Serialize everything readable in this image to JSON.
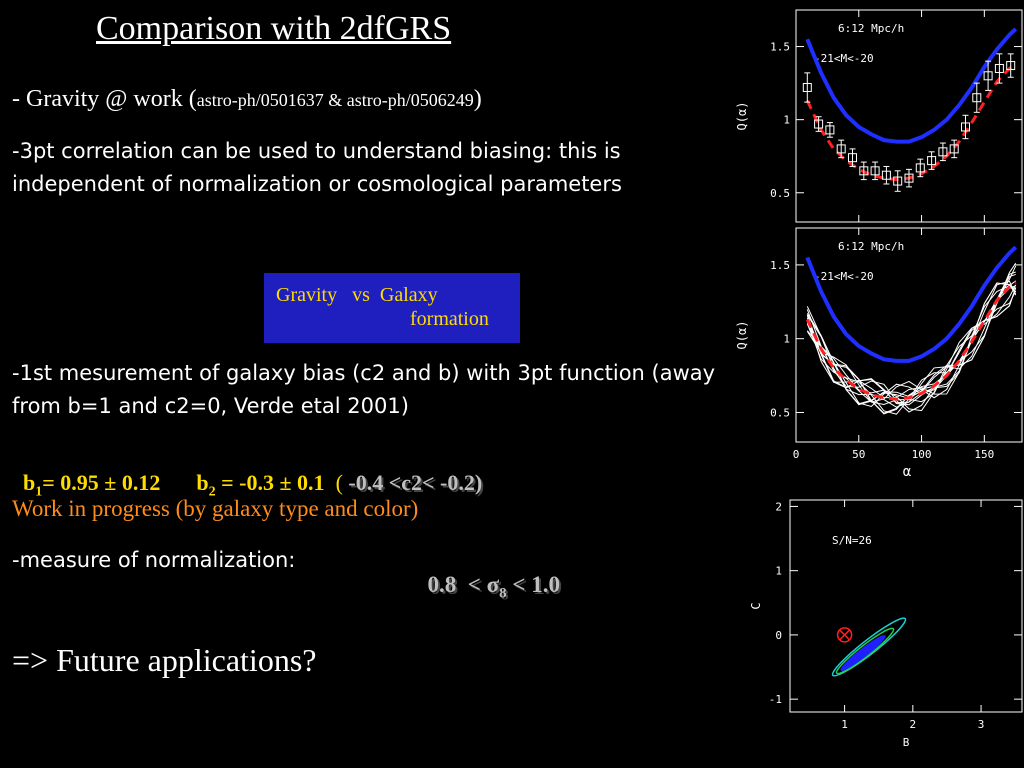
{
  "title": "Comparison with 2dfGRS",
  "gravity": {
    "prefix": "- Gravity @ work (",
    "refs": "astro-ph/0501637 & astro-ph/0506249",
    "suffix": ")"
  },
  "threept_text": "-3pt correlation can be used to understand biasing: this is independent of normalization or cosmological parameters",
  "box": {
    "line1": "Gravity   vs  Galaxy",
    "line2": "formation"
  },
  "bias_text": "-1st mesurement of galaxy bias (c2 and b) with 3pt function (away from b=1 and c2=0, Verde etal 2001)",
  "b_values": {
    "b1_label": "b",
    "b1_sub": "1",
    "b1_value": "= 0.95 ± 0.12",
    "b2_label": "b",
    "b2_sub": "2",
    "b2_value": " = -0.3 ± 0.1",
    "paren_open": "  ( ",
    "c2_range": "-0.4 <c2< -0.2)"
  },
  "wip_text": "Work  in progress (by galaxy type and color)",
  "norm_text": "-measure of normalization:",
  "sigma": {
    "left": "0.8  < σ",
    "sub": "8",
    "right": " < 1.0"
  },
  "future_text": "=> Future applications?",
  "plots": {
    "top_annot1": "6:12 Mpc/h",
    "top_annot2": "-21<M<-20",
    "mid_annot1": "6:12 Mpc/h",
    "mid_annot2": "-21<M<-20",
    "q_ylabel": "Q(α)",
    "x_label": "α",
    "q_yticks": [
      "1.5",
      "1",
      "0.5"
    ],
    "x_ticks": [
      "0",
      "50",
      "100",
      "150"
    ],
    "bot_annot": "S/N=26",
    "bot_yticks": [
      "2",
      "1",
      "0",
      "-1"
    ],
    "bot_xticks": [
      "1",
      "2",
      "3"
    ],
    "bot_ylabel": "C",
    "bot_xlabel": "B"
  },
  "chart_data": [
    {
      "type": "scatter",
      "title": "",
      "xlabel": "",
      "ylabel": "Q(α)",
      "xlim": [
        0,
        180
      ],
      "ylim": [
        0.3,
        1.75
      ],
      "annotations": [
        "6:12 Mpc/h",
        "-21<M<-20"
      ],
      "series": [
        {
          "points": [
            [
              9,
              1.22
            ],
            [
              18,
              0.97
            ],
            [
              27,
              0.93
            ],
            [
              36,
              0.8
            ],
            [
              45,
              0.74
            ],
            [
              54,
              0.65
            ],
            [
              63,
              0.65
            ],
            [
              72,
              0.62
            ],
            [
              81,
              0.58
            ],
            [
              90,
              0.6
            ],
            [
              99,
              0.67
            ],
            [
              108,
              0.72
            ],
            [
              117,
              0.78
            ],
            [
              126,
              0.8
            ],
            [
              135,
              0.95
            ],
            [
              144,
              1.15
            ],
            [
              153,
              1.3
            ],
            [
              162,
              1.35
            ],
            [
              171,
              1.37
            ]
          ],
          "errors": [
            0.1,
            0.05,
            0.05,
            0.06,
            0.06,
            0.06,
            0.06,
            0.06,
            0.07,
            0.06,
            0.06,
            0.06,
            0.06,
            0.06,
            0.08,
            0.1,
            0.1,
            0.1,
            0.08
          ]
        },
        {
          "style": "blue solid",
          "points": [
            [
              9,
              1.55
            ],
            [
              20,
              1.32
            ],
            [
              30,
              1.15
            ],
            [
              40,
              1.03
            ],
            [
              50,
              0.95
            ],
            [
              60,
              0.9
            ],
            [
              70,
              0.86
            ],
            [
              80,
              0.85
            ],
            [
              90,
              0.85
            ],
            [
              100,
              0.88
            ],
            [
              110,
              0.93
            ],
            [
              120,
              1.0
            ],
            [
              130,
              1.1
            ],
            [
              140,
              1.22
            ],
            [
              150,
              1.36
            ],
            [
              160,
              1.48
            ],
            [
              170,
              1.58
            ],
            [
              175,
              1.62
            ]
          ]
        },
        {
          "style": "red dashed",
          "points": [
            [
              9,
              1.13
            ],
            [
              20,
              0.93
            ],
            [
              30,
              0.8
            ],
            [
              40,
              0.72
            ],
            [
              50,
              0.66
            ],
            [
              60,
              0.62
            ],
            [
              70,
              0.6
            ],
            [
              80,
              0.59
            ],
            [
              90,
              0.6
            ],
            [
              100,
              0.63
            ],
            [
              110,
              0.68
            ],
            [
              120,
              0.75
            ],
            [
              130,
              0.85
            ],
            [
              140,
              0.98
            ],
            [
              150,
              1.12
            ],
            [
              160,
              1.26
            ],
            [
              170,
              1.35
            ],
            [
              175,
              1.38
            ]
          ]
        }
      ]
    },
    {
      "type": "line",
      "title": "",
      "xlabel": "α",
      "ylabel": "Q(α)",
      "xlim": [
        0,
        180
      ],
      "ylim": [
        0.3,
        1.75
      ],
      "annotations": [
        "6:12 Mpc/h",
        "-21<M<-20"
      ],
      "series": [
        {
          "style": "blue solid",
          "points": [
            [
              9,
              1.55
            ],
            [
              20,
              1.32
            ],
            [
              30,
              1.15
            ],
            [
              40,
              1.03
            ],
            [
              50,
              0.95
            ],
            [
              60,
              0.9
            ],
            [
              70,
              0.86
            ],
            [
              80,
              0.85
            ],
            [
              90,
              0.85
            ],
            [
              100,
              0.88
            ],
            [
              110,
              0.93
            ],
            [
              120,
              1.0
            ],
            [
              130,
              1.1
            ],
            [
              140,
              1.22
            ],
            [
              150,
              1.36
            ],
            [
              160,
              1.48
            ],
            [
              170,
              1.58
            ],
            [
              175,
              1.62
            ]
          ]
        },
        {
          "style": "red dashed",
          "points": [
            [
              9,
              1.13
            ],
            [
              20,
              0.93
            ],
            [
              30,
              0.8
            ],
            [
              40,
              0.72
            ],
            [
              50,
              0.66
            ],
            [
              60,
              0.62
            ],
            [
              70,
              0.6
            ],
            [
              80,
              0.59
            ],
            [
              90,
              0.6
            ],
            [
              100,
              0.63
            ],
            [
              110,
              0.68
            ],
            [
              120,
              0.75
            ],
            [
              130,
              0.85
            ],
            [
              140,
              0.98
            ],
            [
              150,
              1.12
            ],
            [
              160,
              1.26
            ],
            [
              170,
              1.35
            ],
            [
              175,
              1.38
            ]
          ]
        }
      ]
    },
    {
      "type": "scatter",
      "title": "",
      "xlabel": "B",
      "ylabel": "C",
      "xlim": [
        0.2,
        3.6
      ],
      "ylim": [
        -1.2,
        2.1
      ],
      "annotations": [
        "S/N=26"
      ],
      "best_fit": [
        1.0,
        0.0
      ]
    }
  ]
}
